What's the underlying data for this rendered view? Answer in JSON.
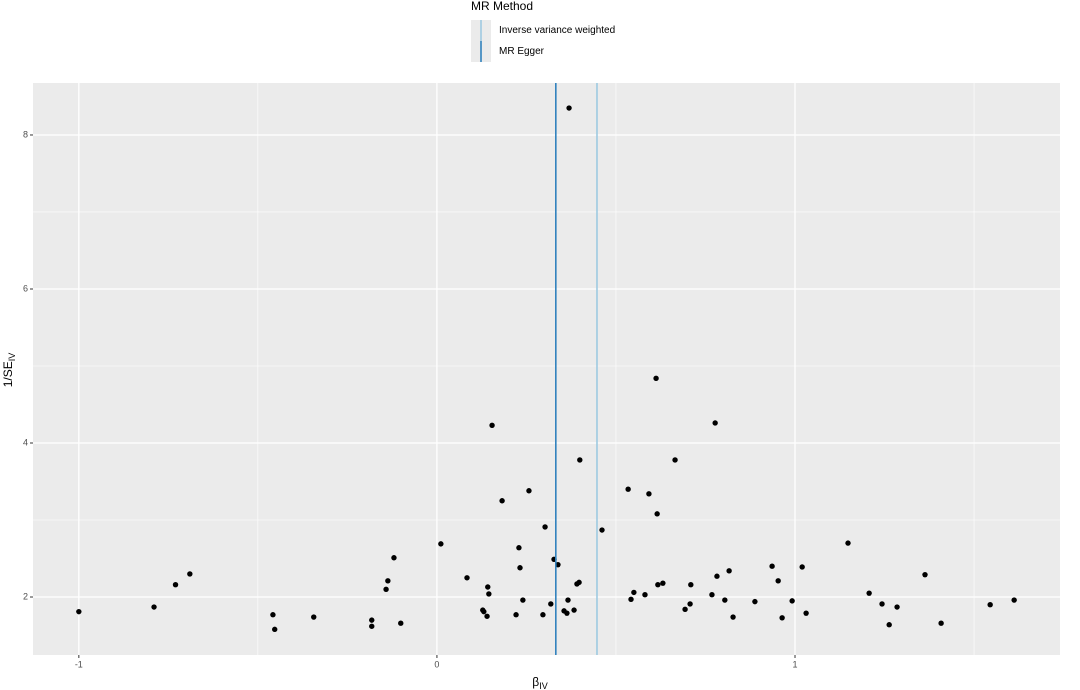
{
  "chart_data": {
    "type": "scatter",
    "x": [
      -1.0,
      -0.79,
      -0.73,
      -0.69,
      -0.458,
      -0.453,
      -0.344,
      -0.182,
      -0.182,
      -0.101,
      -0.142,
      -0.137,
      -0.12,
      0.011,
      0.084,
      0.128,
      0.131,
      0.14,
      0.142,
      0.145,
      0.154,
      0.182,
      0.221,
      0.229,
      0.232,
      0.24,
      0.257,
      0.296,
      0.302,
      0.318,
      0.327,
      0.338,
      0.355,
      0.363,
      0.366,
      0.369,
      0.383,
      0.391,
      0.397,
      0.399,
      0.461,
      0.534,
      0.542,
      0.55,
      0.581,
      0.592,
      0.612,
      0.615,
      0.617,
      0.631,
      0.665,
      0.693,
      0.707,
      0.709,
      0.768,
      0.777,
      0.782,
      0.804,
      0.816,
      0.827,
      0.888,
      0.936,
      0.953,
      0.964,
      0.992,
      1.02,
      1.031,
      1.148,
      1.207,
      1.243,
      1.263,
      1.285,
      1.363,
      1.408,
      1.545,
      1.612
    ],
    "values": [
      1.81,
      1.87,
      2.16,
      2.3,
      1.77,
      1.58,
      1.74,
      1.7,
      1.62,
      1.66,
      2.1,
      2.21,
      2.51,
      2.69,
      2.25,
      1.83,
      1.81,
      1.75,
      2.13,
      2.04,
      4.23,
      3.25,
      1.77,
      2.64,
      2.38,
      1.96,
      3.38,
      1.77,
      2.91,
      1.91,
      2.49,
      2.42,
      1.82,
      1.79,
      1.96,
      8.35,
      1.83,
      2.17,
      2.19,
      3.78,
      2.87,
      3.4,
      1.97,
      2.06,
      2.03,
      3.34,
      4.84,
      3.08,
      2.16,
      2.18,
      3.78,
      1.84,
      1.91,
      2.16,
      2.03,
      4.26,
      2.27,
      1.96,
      2.34,
      1.74,
      1.94,
      2.4,
      2.21,
      1.73,
      1.95,
      2.39,
      1.79,
      2.7,
      2.05,
      1.91,
      1.64,
      1.87,
      2.29,
      1.66,
      1.9,
      1.96
    ],
    "color": "#000000",
    "vlines": [
      {
        "name": "Inverse variance weighted",
        "color": "#9ecae1",
        "x": 0.447
      },
      {
        "name": "MR Egger",
        "color": "#3182bd",
        "x": 0.332
      }
    ],
    "legend_title": "MR Method",
    "xlabel": "β",
    "xlabel_sub": "IV",
    "ylabel": "1/SE",
    "ylabel_sub": "IV",
    "xlim": [
      -1.128,
      1.74
    ],
    "ylim": [
      1.247,
      8.675
    ],
    "xticks": [
      -1,
      0,
      1
    ],
    "yticks": [
      2,
      4,
      6,
      8
    ],
    "xminor": [
      -0.5,
      0.5,
      1.5
    ],
    "yminor": [
      3,
      5,
      7
    ],
    "grid": true
  }
}
